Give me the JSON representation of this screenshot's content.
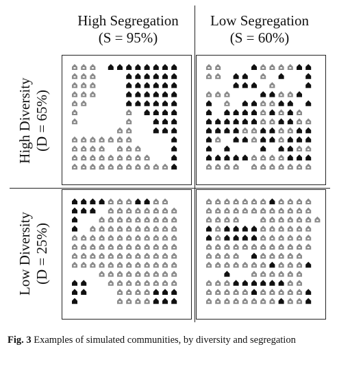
{
  "figure": {
    "columns": [
      {
        "title": "High Segregation",
        "subtitle": "(S = 95%)"
      },
      {
        "title": "Low Segregation",
        "subtitle": "(S = 60%)"
      }
    ],
    "rows": [
      {
        "title": "High Diversity",
        "subtitle": "(D = 65%)"
      },
      {
        "title": "Low Diversity",
        "subtitle": "(D = 25%)"
      }
    ],
    "legend_codes": {
      "g": "grey-house-icon",
      "b": "black-house-icon",
      ".": "empty-lot"
    },
    "panels": [
      {
        "name": "high-diversity-high-segregation",
        "grid": [
          "ggg.bbbbbbbb",
          "ggg...bbbbbb",
          "ggg...bbbbbb",
          "ggg...bbbbbb",
          "gg....bbbbbb",
          "g.....g.bbbb",
          "g.....g..bbb",
          ".....gg..bbb",
          "ggggggg....b",
          "gggg.ggg...b",
          "ggggggggg..b",
          "gggggggggggb"
        ]
      },
      {
        "name": "high-diversity-low-segregation",
        "grid": [
          "gg...bggggbb",
          "gg.bb.g.b..b",
          "...bbb.g...b",
          "ggg...bbggb",
          "b.g.bbggbb.b",
          "b.bbbbgbgbg.",
          "bbbbbbggbbgg",
          "bbbbggbbggbb",
          "bg.bbgbbgbbb",
          "b.b...b.bbgg",
          "bbbbbggggbbb",
          "gggg.ggggggg"
        ]
      },
      {
        "name": "low-diversity-high-segregation",
        "grid": [
          "bbbbgggbbgg",
          "bbb.gggggggg",
          "b..ggggggggg",
          "b.gggggggggg",
          "gggggggggggg",
          "gggggggggggg",
          "gggggggggggg",
          "gggggggggggg",
          "...ggggggggg",
          "bb..gggggggg",
          "bb...ggggbbb",
          "b....ggggbbb"
        ]
      },
      {
        "name": "low-diversity-low-segregation",
        "grid": [
          "gggggggbgggg",
          "gggggggggggg",
          "gggg..ggggggg",
          "bgbbbbgggggg",
          "bgbbbbgggggg",
          "gggggggggggg",
          "gggg.bggggg",
          "gggggggbgggb",
          "..b..gggggg",
          "gggbbbbbbgg",
          "gggggbgggggb",
          "ggggggggbggb"
        ]
      }
    ]
  },
  "caption": {
    "label": "Fig. 3",
    "text": "Examples of simulated communities, by diversity and segregation"
  }
}
